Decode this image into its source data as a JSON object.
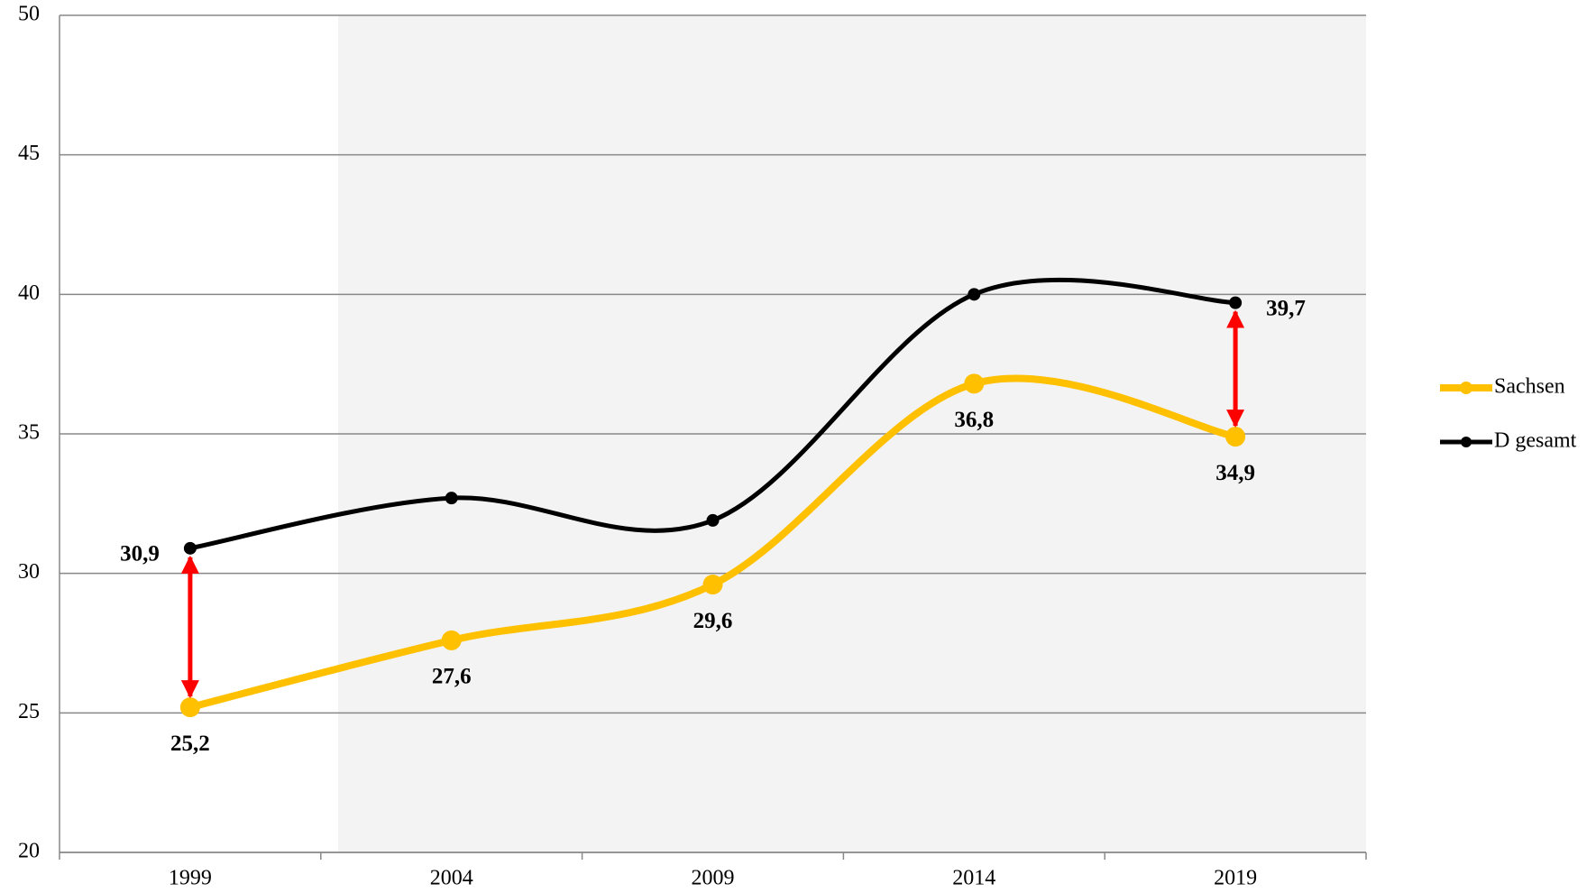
{
  "chart_data": {
    "type": "line",
    "categories": [
      "1999",
      "2004",
      "2009",
      "2014",
      "2019"
    ],
    "series": [
      {
        "name": "Sachsen",
        "color": "#ffc000",
        "values": [
          25.2,
          27.6,
          29.6,
          36.8,
          34.9
        ],
        "value_labels": [
          "25,2",
          "27,6",
          "29,6",
          "36,8",
          "34,9"
        ]
      },
      {
        "name": "D gesamt",
        "color": "#000000",
        "values": [
          30.9,
          32.7,
          31.9,
          40.0,
          39.7
        ],
        "value_labels": [
          "30,9",
          null,
          null,
          null,
          "39,7"
        ]
      }
    ],
    "ylim": [
      20,
      50
    ],
    "yticks": [
      20,
      25,
      30,
      35,
      40,
      45,
      50
    ],
    "grid": true,
    "legend": "right",
    "annotation_color": "#ff0000"
  }
}
